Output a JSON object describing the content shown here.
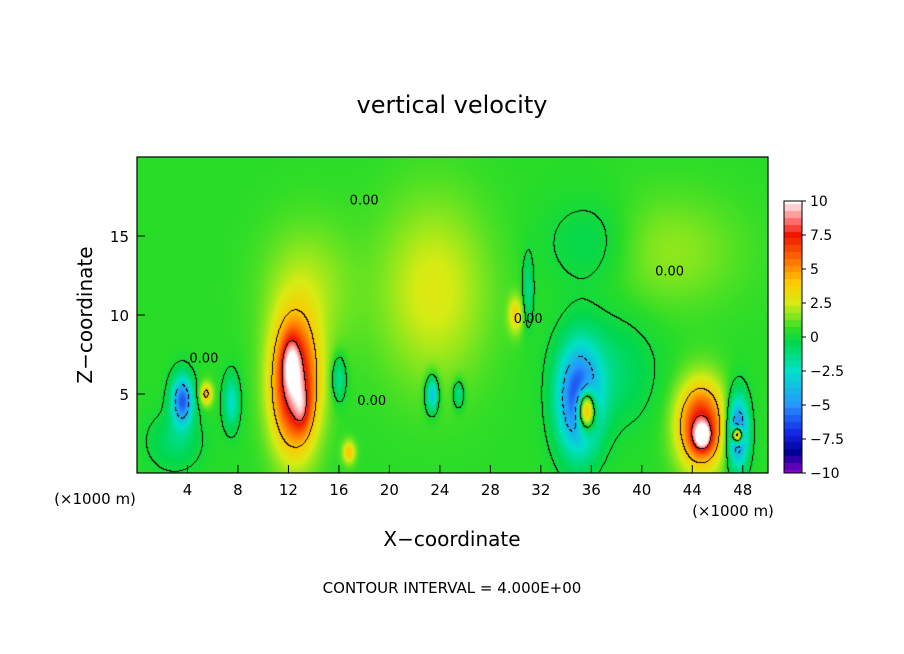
{
  "chart_data": {
    "type": "heatmap",
    "title": "vertical velocity",
    "xlabel": "X−coordinate",
    "ylabel": "Z−coordinate",
    "x_unit_left": "(×1000 m)",
    "x_unit_right": "(×1000 m)",
    "footer": "CONTOUR INTERVAL = 4.000E+00",
    "xlim": [
      0,
      50
    ],
    "ylim": [
      0,
      20
    ],
    "x_ticks": [
      4,
      8,
      12,
      16,
      20,
      24,
      28,
      32,
      36,
      40,
      44,
      48
    ],
    "x_tick_labels": [
      "4",
      "8",
      "12",
      "16",
      "20",
      "24",
      "28",
      "32",
      "36",
      "40",
      "44",
      "48"
    ],
    "y_ticks": [
      5,
      10,
      15
    ],
    "y_tick_labels": [
      "5",
      "10",
      "15"
    ],
    "colorbar": {
      "range": [
        -10,
        10
      ],
      "ticks": [
        10,
        7.5,
        5,
        2.5,
        0,
        -2.5,
        -5,
        -7.5,
        -10
      ],
      "tick_labels": [
        "10",
        "7.5",
        "5",
        "2.5",
        "0",
        "−2.5",
        "−5",
        "−7.5",
        "−10"
      ]
    },
    "contour_labels": [
      {
        "text": "0.00",
        "x": 18,
        "y": 17.0
      },
      {
        "text": "0.00",
        "x": 31,
        "y": 9.5
      },
      {
        "text": "0.00",
        "x": 42.2,
        "y": 12.5
      },
      {
        "text": "0.00",
        "x": 5.3,
        "y": 7.0
      },
      {
        "text": "0.00",
        "x": 18.6,
        "y": 4.3
      }
    ],
    "background_value": 0.5,
    "features": [
      {
        "x": 12.5,
        "y": 5.5,
        "sx": 1.3,
        "sy": 2.9,
        "v": 8.5
      },
      {
        "x": 12.2,
        "y": 7.0,
        "sx": 0.5,
        "sy": 1.2,
        "v": 3.0
      },
      {
        "x": 13.1,
        "y": 4.0,
        "sx": 0.45,
        "sy": 1.0,
        "v": 2.0
      },
      {
        "x": 3.6,
        "y": 4.6,
        "sx": 0.6,
        "sy": 1.1,
        "v": -6.5
      },
      {
        "x": 7.5,
        "y": 4.5,
        "sx": 0.45,
        "sy": 1.2,
        "v": -3.0
      },
      {
        "x": 5.5,
        "y": 5.0,
        "sx": 0.35,
        "sy": 0.5,
        "v": 4.0
      },
      {
        "x": 3.0,
        "y": 2.0,
        "sx": 1.5,
        "sy": 1.3,
        "v": -1.5
      },
      {
        "x": 35.0,
        "y": 4.6,
        "sx": 1.2,
        "sy": 2.4,
        "v": -7.0
      },
      {
        "x": 35.6,
        "y": 4.0,
        "sx": 0.5,
        "sy": 0.9,
        "v": 10.0
      },
      {
        "x": 37.5,
        "y": 6.5,
        "sx": 2.5,
        "sy": 2.5,
        "v": -1.5
      },
      {
        "x": 44.7,
        "y": 3.0,
        "sx": 1.3,
        "sy": 1.9,
        "v": 7.5
      },
      {
        "x": 44.8,
        "y": 2.3,
        "sx": 0.5,
        "sy": 0.6,
        "v": 5.0
      },
      {
        "x": 47.6,
        "y": 2.6,
        "sx": 0.6,
        "sy": 1.6,
        "v": -7.0
      },
      {
        "x": 47.6,
        "y": 2.4,
        "sx": 0.28,
        "sy": 0.35,
        "v": 10.0
      },
      {
        "x": 23.5,
        "y": 11.5,
        "sx": 3.0,
        "sy": 4.0,
        "v": 2.2
      },
      {
        "x": 13.5,
        "y": 11.5,
        "sx": 2.5,
        "sy": 3.0,
        "v": 1.5
      },
      {
        "x": 23.4,
        "y": 5.0,
        "sx": 0.35,
        "sy": 0.8,
        "v": -4.5
      },
      {
        "x": 25.5,
        "y": 5.0,
        "sx": 0.3,
        "sy": 0.6,
        "v": -2.5
      },
      {
        "x": 16.0,
        "y": 6.0,
        "sx": 0.4,
        "sy": 1.0,
        "v": -2.5
      },
      {
        "x": 30.0,
        "y": 10.0,
        "sx": 0.4,
        "sy": 0.8,
        "v": 3.0
      },
      {
        "x": 31.0,
        "y": 11.5,
        "sx": 0.3,
        "sy": 1.5,
        "v": -2.0
      },
      {
        "x": 16.8,
        "y": 1.3,
        "sx": 0.35,
        "sy": 0.5,
        "v": 3.5
      },
      {
        "x": 36.0,
        "y": 14.5,
        "sx": 2.5,
        "sy": 2.0,
        "v": -1.2
      },
      {
        "x": 42.0,
        "y": 14.0,
        "sx": 4.0,
        "sy": 2.5,
        "v": 1.2
      }
    ]
  }
}
